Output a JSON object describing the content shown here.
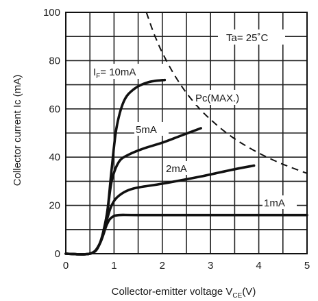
{
  "chart_data": {
    "type": "line",
    "xlabel": "Collector-emitter voltage V",
    "xlabel_sub": "CE",
    "xlabel_unit": "(V)",
    "ylabel": "Collector current Ic (mA)",
    "xlim": [
      0,
      5
    ],
    "ylim": [
      0,
      100
    ],
    "x_ticks": [
      0,
      0.5,
      1,
      1.5,
      2,
      2.5,
      3,
      3.5,
      4,
      4.5,
      5
    ],
    "x_tick_labels": [
      "0",
      "1",
      "2",
      "3",
      "4",
      "5"
    ],
    "y_ticks": [
      0,
      10,
      20,
      30,
      40,
      50,
      60,
      70,
      80,
      90,
      100
    ],
    "y_tick_labels": [
      "0",
      "20",
      "40",
      "60",
      "80",
      "100"
    ],
    "grid": true,
    "annotation": "Ta= 25˚C",
    "series": [
      {
        "name": "IF= 10mA",
        "label_prefix": "I",
        "label_sub": "F",
        "label_rest": "= 10mA",
        "points": [
          [
            0,
            0
          ],
          [
            0.5,
            0
          ],
          [
            0.7,
            4
          ],
          [
            0.85,
            16
          ],
          [
            0.95,
            35
          ],
          [
            1.05,
            52
          ],
          [
            1.2,
            63
          ],
          [
            1.4,
            68
          ],
          [
            1.7,
            71
          ],
          [
            2.05,
            72
          ]
        ]
      },
      {
        "name": "5mA",
        "points": [
          [
            0,
            0
          ],
          [
            0.5,
            0
          ],
          [
            0.7,
            4
          ],
          [
            0.85,
            16
          ],
          [
            0.95,
            30
          ],
          [
            1.1,
            38
          ],
          [
            1.3,
            41
          ],
          [
            1.6,
            43.5
          ],
          [
            2.0,
            46
          ],
          [
            2.4,
            49
          ],
          [
            2.8,
            52
          ]
        ]
      },
      {
        "name": "2mA",
        "points": [
          [
            0,
            0
          ],
          [
            0.5,
            0
          ],
          [
            0.7,
            4
          ],
          [
            0.85,
            14
          ],
          [
            0.95,
            20
          ],
          [
            1.1,
            24
          ],
          [
            1.4,
            27
          ],
          [
            2.0,
            29
          ],
          [
            2.8,
            32
          ],
          [
            3.5,
            35
          ],
          [
            3.9,
            36.5
          ]
        ]
      },
      {
        "name": "1mA",
        "points": [
          [
            0,
            0
          ],
          [
            0.5,
            0
          ],
          [
            0.7,
            4
          ],
          [
            0.85,
            12
          ],
          [
            0.95,
            15
          ],
          [
            1.1,
            16
          ],
          [
            1.5,
            16
          ],
          [
            3.0,
            16
          ],
          [
            5.0,
            16
          ]
        ]
      }
    ],
    "pc_max": {
      "name": "Pc(MAX.)",
      "points": [
        [
          1.67,
          100
        ],
        [
          1.8,
          92.6
        ],
        [
          1.9,
          87.7
        ],
        [
          2.0,
          83.3
        ],
        [
          2.2,
          75.8
        ],
        [
          2.4,
          69.4
        ],
        [
          2.6,
          64.1
        ],
        [
          2.8,
          59.5
        ],
        [
          3.0,
          55.6
        ],
        [
          3.3,
          50.5
        ],
        [
          3.6,
          46.3
        ],
        [
          4.0,
          41.7
        ],
        [
          4.4,
          37.9
        ],
        [
          4.7,
          35.5
        ],
        [
          5.0,
          33.3
        ]
      ]
    }
  }
}
